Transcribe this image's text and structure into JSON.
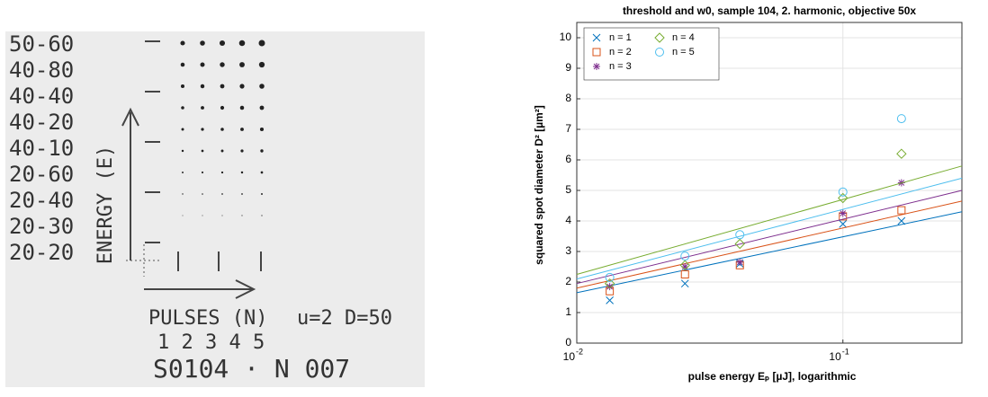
{
  "photo": {
    "energy_labels": [
      "50-60",
      "40-80",
      "40-40",
      "40-20",
      "40-10",
      "20-60",
      "20-40",
      "20-30",
      "20-20"
    ],
    "axis_energy": "ENERGY (E)",
    "axis_pulses": "PULSES (N)",
    "params": "u=2 D=50",
    "pulse_numbers": "1 2 3 4 5",
    "sample_id": "S0104 · N 007"
  },
  "chart_data": {
    "type": "scatter",
    "title": "threshold and w0, sample 104, 2. harmonic, objective 50x",
    "x_label": "pulse energy Eₚ [µJ], logarithmic",
    "y_label": "squared spot diameter D² [µm²]",
    "x": [
      0.0133,
      0.0255,
      0.041,
      0.1,
      0.166
    ],
    "fit_x": [
      0.01,
      0.28
    ],
    "xlim": [
      0.01,
      0.28
    ],
    "ylim": [
      0,
      10.5
    ],
    "log_x": true,
    "grid": true,
    "legend": "upper left",
    "xticks": [
      {
        "value": 0.01,
        "label": "10",
        "exponent": "-2"
      },
      {
        "value": 0.1,
        "label": "10",
        "exponent": "-1"
      }
    ],
    "yticks": [
      0,
      1,
      2,
      3,
      4,
      5,
      6,
      7,
      8,
      9,
      10
    ],
    "series": [
      {
        "name": "n = 1",
        "color": "#0072bd",
        "marker": "x",
        "values": [
          1.4,
          1.95,
          2.6,
          3.9,
          4.0
        ],
        "fit_values": [
          1.65,
          4.3
        ]
      },
      {
        "name": "n = 2",
        "color": "#d95319",
        "marker": "square",
        "values": [
          1.7,
          2.25,
          2.55,
          4.15,
          4.35
        ],
        "fit_values": [
          1.8,
          4.65
        ]
      },
      {
        "name": "n = 3",
        "color": "#7e2f8e",
        "marker": "star",
        "values": [
          1.85,
          2.5,
          2.65,
          4.25,
          5.25
        ],
        "fit_values": [
          1.95,
          5.0
        ]
      },
      {
        "name": "n = 4",
        "color": "#77ac30",
        "marker": "diamond",
        "values": [
          1.95,
          2.55,
          3.25,
          4.75,
          6.2
        ],
        "fit_values": [
          2.25,
          5.8
        ]
      },
      {
        "name": "n = 5",
        "color": "#4dbeee",
        "marker": "circle",
        "values": [
          2.15,
          2.85,
          3.55,
          4.95,
          7.35
        ],
        "fit_values": [
          2.1,
          5.4
        ]
      }
    ]
  }
}
